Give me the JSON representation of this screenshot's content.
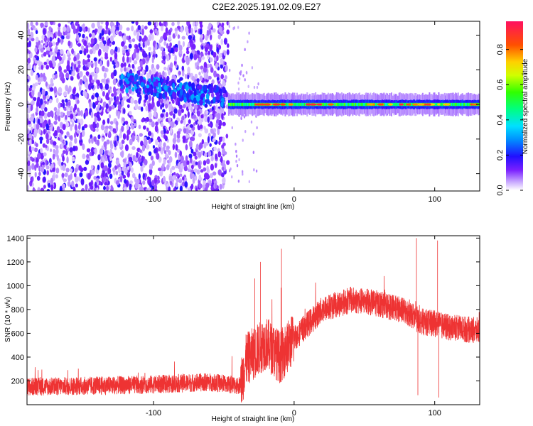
{
  "title": "C2E2.2025.191.02.09.E27",
  "chart_data": [
    {
      "type": "heatmap",
      "xlabel": "Height of straight line (km)",
      "ylabel": "Frequency (Hz)",
      "xlim": [
        -190,
        132
      ],
      "ylim": [
        -50,
        48
      ],
      "xticks": [
        -100,
        0,
        100
      ],
      "yticks": [
        -40,
        -20,
        0,
        20,
        40
      ],
      "colorbar": {
        "label": "Normalized spectral amplitude",
        "range": [
          0,
          0.96
        ],
        "ticks": [
          0.0,
          0.2,
          0.4,
          0.6,
          0.8
        ]
      },
      "features": {
        "noise_region_x": [
          -190,
          -47
        ],
        "sparse_region_x": [
          -47,
          -25
        ],
        "signal_band_x": [
          -47,
          132
        ],
        "signal_center_hz": 0,
        "enhanced_band_x": [
          -125,
          -50
        ],
        "enhanced_band_freq_hz": [
          13,
          4
        ]
      }
    },
    {
      "type": "line",
      "xlabel": "Height of straight line (km)",
      "ylabel": "SNR (10 * v/v)",
      "xlim": [
        -190,
        132
      ],
      "ylim": [
        0,
        1420
      ],
      "xticks": [
        -100,
        0,
        100
      ],
      "yticks": [
        200,
        400,
        600,
        800,
        1000,
        1200,
        1400
      ],
      "color": "#ee3333",
      "envelope": [
        {
          "x": -190,
          "y": 150
        },
        {
          "x": -140,
          "y": 160
        },
        {
          "x": -100,
          "y": 170
        },
        {
          "x": -60,
          "y": 190
        },
        {
          "x": -38,
          "y": 160
        },
        {
          "x": -34,
          "y": 380
        },
        {
          "x": -20,
          "y": 520
        },
        {
          "x": -10,
          "y": 400
        },
        {
          "x": 0,
          "y": 560
        },
        {
          "x": 20,
          "y": 800
        },
        {
          "x": 40,
          "y": 880
        },
        {
          "x": 60,
          "y": 850
        },
        {
          "x": 80,
          "y": 780
        },
        {
          "x": 90,
          "y": 700
        },
        {
          "x": 100,
          "y": 680
        },
        {
          "x": 110,
          "y": 650
        },
        {
          "x": 132,
          "y": 620
        }
      ],
      "spikes": [
        {
          "x": -28,
          "y": 1060
        },
        {
          "x": -24,
          "y": 1200
        },
        {
          "x": -9,
          "y": 1310
        },
        {
          "x": 87,
          "y": 1400
        },
        {
          "x": 88,
          "y": 80
        },
        {
          "x": 102,
          "y": 1380
        },
        {
          "x": 103,
          "y": 60
        }
      ]
    }
  ]
}
